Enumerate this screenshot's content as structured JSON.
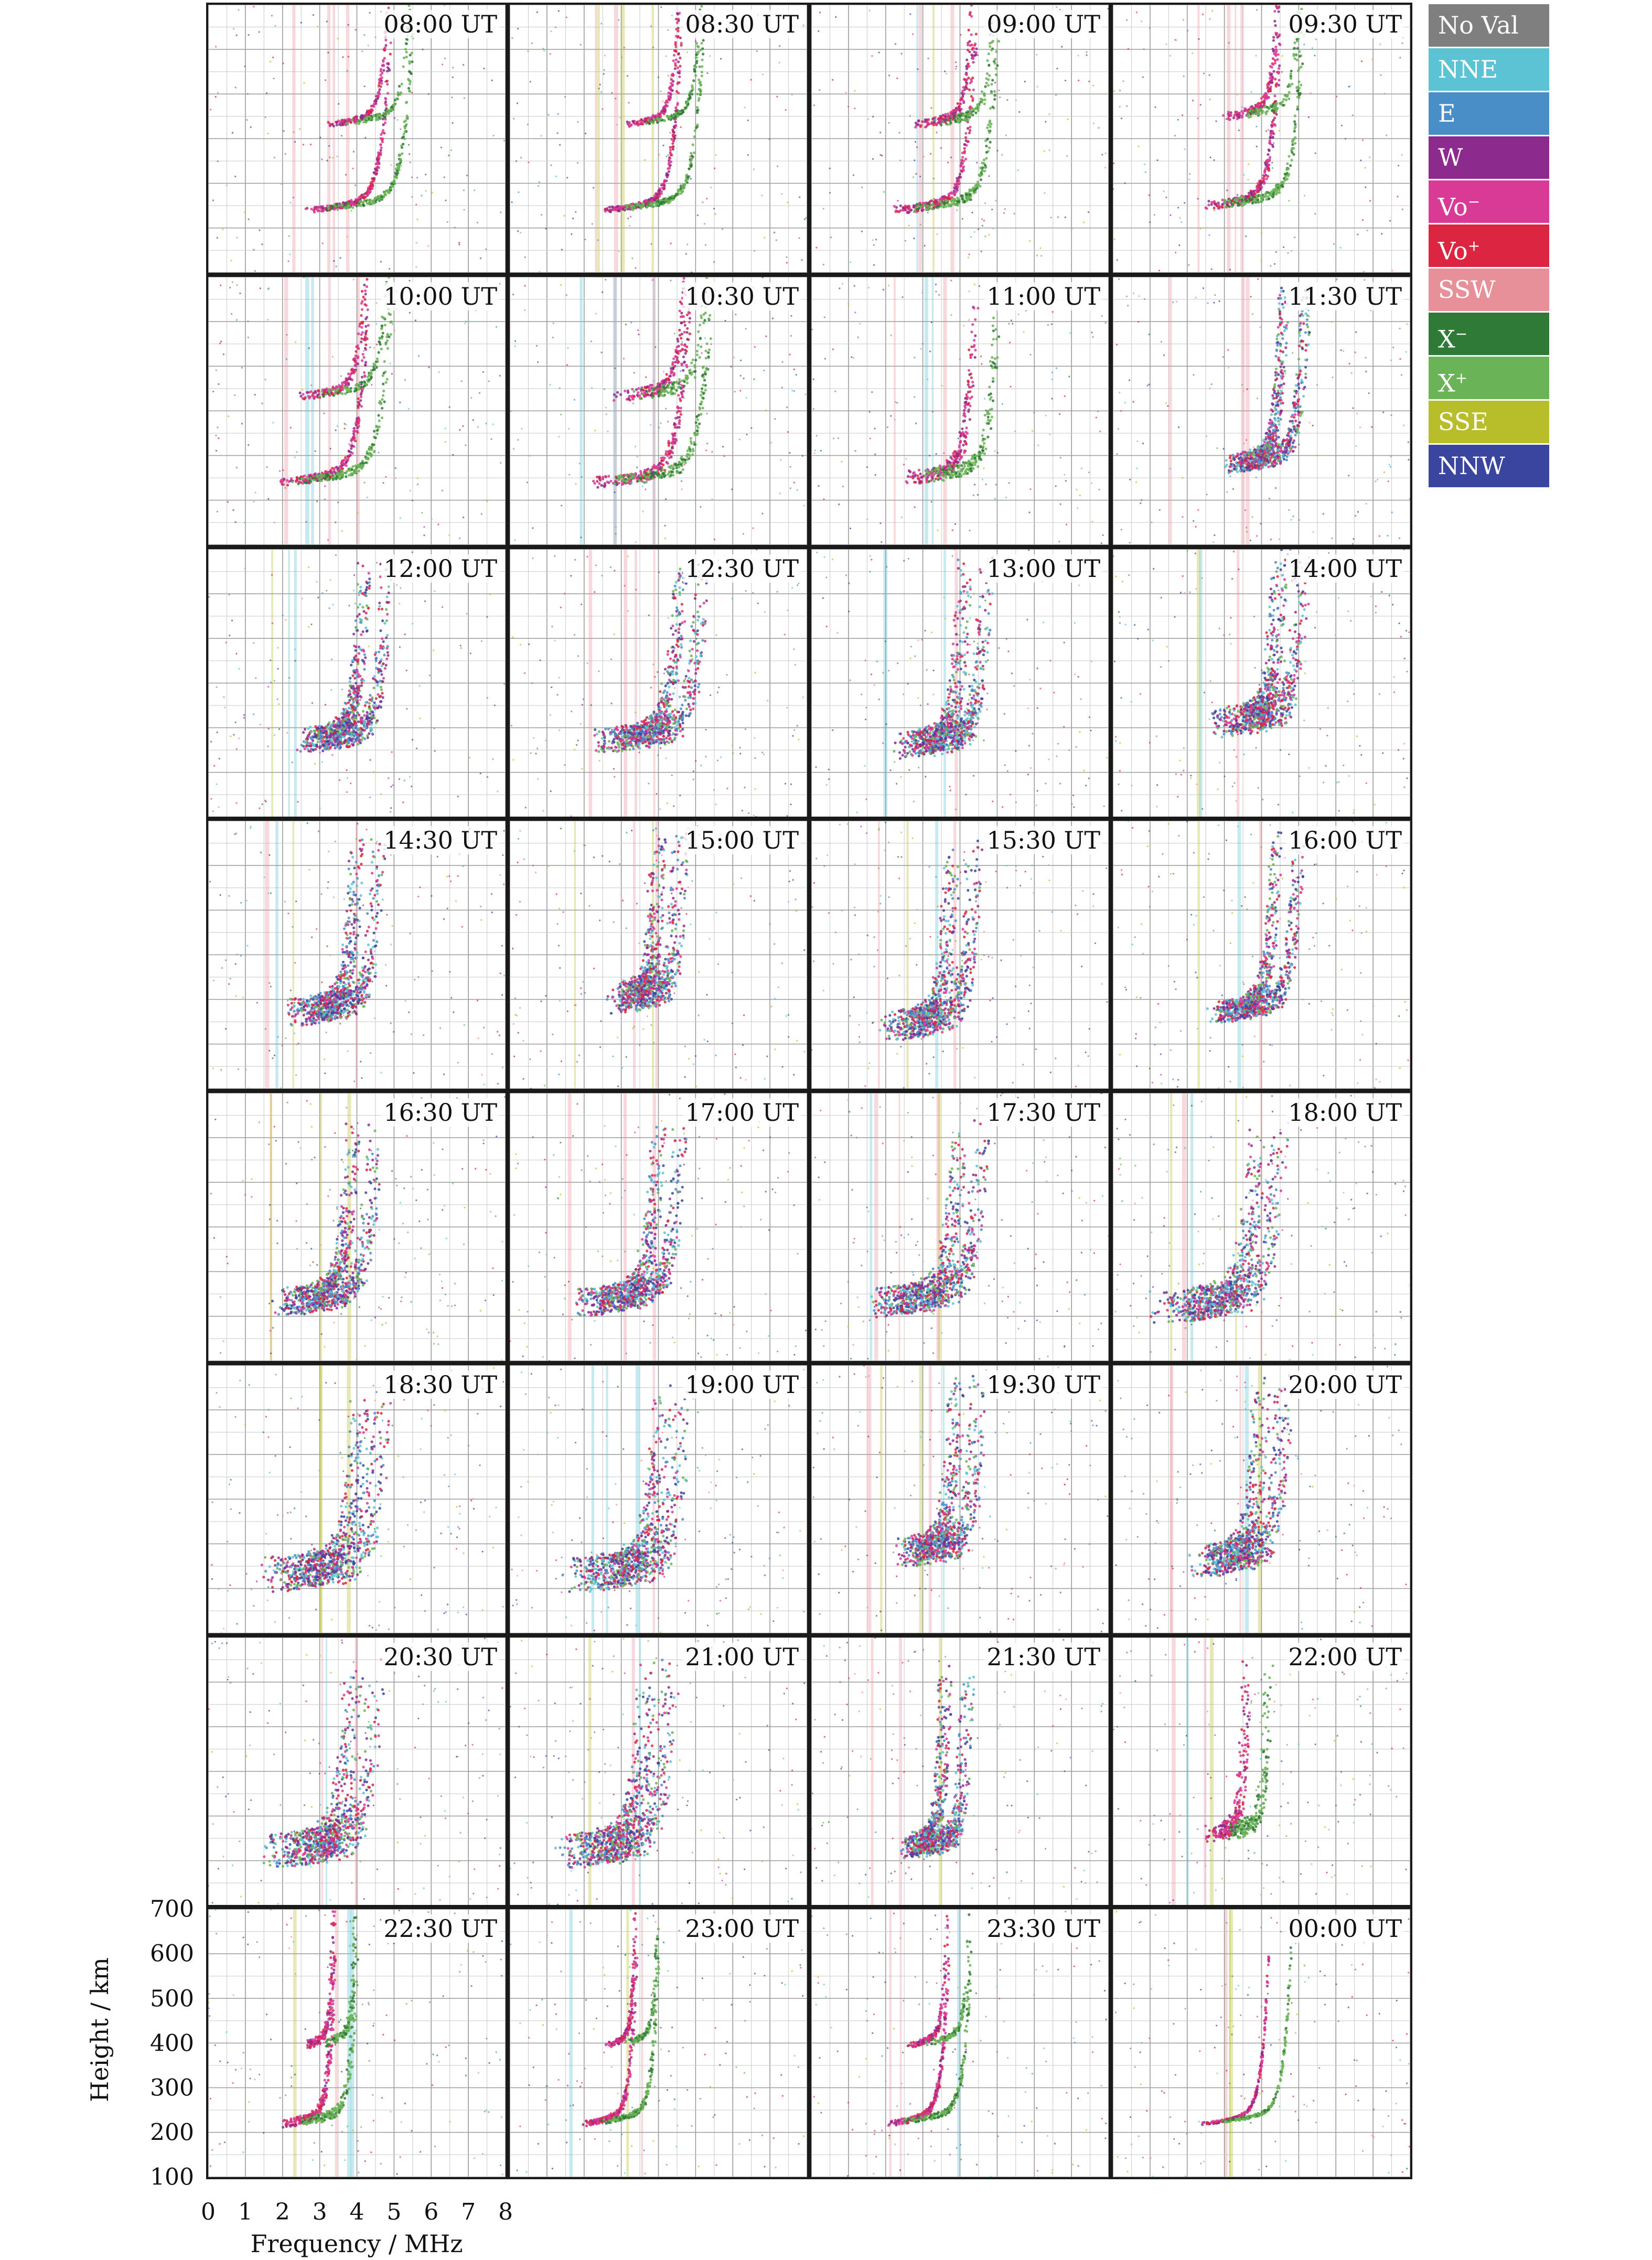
{
  "figure": {
    "y_axis_label": "Height / km",
    "x_axis_label": "Frequency / MHz"
  },
  "legend": [
    {
      "label": "No Val",
      "color": "#7f7f7f"
    },
    {
      "label": "NNE",
      "color": "#5cc3d4"
    },
    {
      "label": "E",
      "color": "#4a8ec8"
    },
    {
      "label": "W",
      "color": "#8c2a8e"
    },
    {
      "label": "Vo",
      "sup": "−",
      "color": "#d83a96"
    },
    {
      "label": "Vo",
      "sup": "+",
      "color": "#dc2540"
    },
    {
      "label": "SSW",
      "color": "#e8909a"
    },
    {
      "label": "X",
      "sup": "−",
      "color": "#2e7a36"
    },
    {
      "label": "X",
      "sup": "+",
      "color": "#6ab356"
    },
    {
      "label": "SSE",
      "color": "#b8bd2a"
    },
    {
      "label": "NNW",
      "color": "#3a45a0"
    }
  ],
  "chart_data": {
    "type": "scatter",
    "description": "Ionograms at 30-minute intervals; echo points colored by arrival direction / polarization",
    "xlim": [
      0,
      8
    ],
    "ylim": [
      100,
      700
    ],
    "x_ticks": [
      "0",
      "1",
      "2",
      "3",
      "4",
      "5",
      "6",
      "7",
      "8"
    ],
    "y_ticks": [
      "100",
      "200",
      "300",
      "400",
      "500",
      "600",
      "700"
    ],
    "grid": true,
    "legend_position": "right",
    "panels": [
      {
        "time": "08:00 UT",
        "base_f": 2.6,
        "base_h": 240,
        "foF2": 5.5,
        "second_hop": true,
        "spread": 0.1
      },
      {
        "time": "08:30 UT",
        "base_f": 2.5,
        "base_h": 240,
        "foF2": 5.2,
        "second_hop": true,
        "spread": 0.1
      },
      {
        "time": "09:00 UT",
        "base_f": 2.2,
        "base_h": 240,
        "foF2": 5.0,
        "second_hop": true,
        "spread": 0.15
      },
      {
        "time": "09:30 UT",
        "base_f": 2.4,
        "base_h": 250,
        "foF2": 5.1,
        "second_hop": true,
        "spread": 0.15
      },
      {
        "time": "10:00 UT",
        "base_f": 1.8,
        "base_h": 240,
        "foF2": 4.9,
        "second_hop": true,
        "spread": 0.15
      },
      {
        "time": "10:30 UT",
        "base_f": 2.2,
        "base_h": 240,
        "foF2": 5.4,
        "second_hop": true,
        "spread": 0.2
      },
      {
        "time": "11:00 UT",
        "base_f": 2.5,
        "base_h": 250,
        "foF2": 5.0,
        "second_hop": false,
        "spread": 0.25
      },
      {
        "time": "11:30 UT",
        "base_f": 3.0,
        "base_h": 280,
        "foF2": 5.2,
        "second_hop": false,
        "spread": 0.35
      },
      {
        "time": "12:00 UT",
        "base_f": 2.4,
        "base_h": 270,
        "foF2": 4.8,
        "second_hop": false,
        "spread": 0.45
      },
      {
        "time": "12:30 UT",
        "base_f": 2.3,
        "base_h": 270,
        "foF2": 5.2,
        "second_hop": false,
        "spread": 0.45
      },
      {
        "time": "13:00 UT",
        "base_f": 2.4,
        "base_h": 260,
        "foF2": 4.7,
        "second_hop": false,
        "spread": 0.5
      },
      {
        "time": "14:00 UT",
        "base_f": 2.8,
        "base_h": 310,
        "foF2": 5.1,
        "second_hop": false,
        "spread": 0.55
      },
      {
        "time": "14:30 UT",
        "base_f": 2.2,
        "base_h": 270,
        "foF2": 4.6,
        "second_hop": false,
        "spread": 0.5
      },
      {
        "time": "15:00 UT",
        "base_f": 2.8,
        "base_h": 300,
        "foF2": 4.6,
        "second_hop": false,
        "spread": 0.55
      },
      {
        "time": "15:30 UT",
        "base_f": 2.0,
        "base_h": 240,
        "foF2": 4.4,
        "second_hop": false,
        "spread": 0.55
      },
      {
        "time": "16:00 UT",
        "base_f": 2.6,
        "base_h": 270,
        "foF2": 5.0,
        "second_hop": false,
        "spread": 0.4
      },
      {
        "time": "16:30 UT",
        "base_f": 1.8,
        "base_h": 230,
        "foF2": 4.5,
        "second_hop": false,
        "spread": 0.5
      },
      {
        "time": "17:00 UT",
        "base_f": 1.8,
        "base_h": 230,
        "foF2": 4.6,
        "second_hop": false,
        "spread": 0.5
      },
      {
        "time": "17:30 UT",
        "base_f": 1.6,
        "base_h": 230,
        "foF2": 4.6,
        "second_hop": false,
        "spread": 0.55
      },
      {
        "time": "18:00 UT",
        "base_f": 1.2,
        "base_h": 220,
        "foF2": 4.5,
        "second_hop": false,
        "spread": 0.6
      },
      {
        "time": "18:30 UT",
        "base_f": 1.5,
        "base_h": 230,
        "foF2": 4.7,
        "second_hop": false,
        "spread": 0.65
      },
      {
        "time": "19:00 UT",
        "base_f": 1.6,
        "base_h": 230,
        "foF2": 4.7,
        "second_hop": false,
        "spread": 0.65
      },
      {
        "time": "19:30 UT",
        "base_f": 2.4,
        "base_h": 280,
        "foF2": 4.5,
        "second_hop": false,
        "spread": 0.55
      },
      {
        "time": "20:00 UT",
        "base_f": 2.2,
        "base_h": 260,
        "foF2": 4.6,
        "second_hop": false,
        "spread": 0.6
      },
      {
        "time": "20:30 UT",
        "base_f": 1.6,
        "base_h": 220,
        "foF2": 4.5,
        "second_hop": false,
        "spread": 0.65
      },
      {
        "time": "21:00 UT",
        "base_f": 1.4,
        "base_h": 220,
        "foF2": 4.3,
        "second_hop": false,
        "spread": 0.65
      },
      {
        "time": "21:30 UT",
        "base_f": 2.5,
        "base_h": 230,
        "foF2": 4.2,
        "second_hop": false,
        "spread": 0.45
      },
      {
        "time": "22:00 UT",
        "base_f": 2.6,
        "base_h": 260,
        "foF2": 4.2,
        "second_hop": false,
        "spread": 0.3
      },
      {
        "time": "22:30 UT",
        "base_f": 2.0,
        "base_h": 220,
        "foF2": 4.0,
        "second_hop": true,
        "spread": 0.15
      },
      {
        "time": "23:00 UT",
        "base_f": 2.0,
        "base_h": 220,
        "foF2": 4.0,
        "second_hop": true,
        "spread": 0.1
      },
      {
        "time": "23:30 UT",
        "base_f": 2.0,
        "base_h": 220,
        "foF2": 4.3,
        "second_hop": true,
        "spread": 0.1
      },
      {
        "time": "00:00 UT",
        "base_f": 2.4,
        "base_h": 220,
        "foF2": 4.8,
        "second_hop": false,
        "spread": 0.05
      }
    ]
  }
}
